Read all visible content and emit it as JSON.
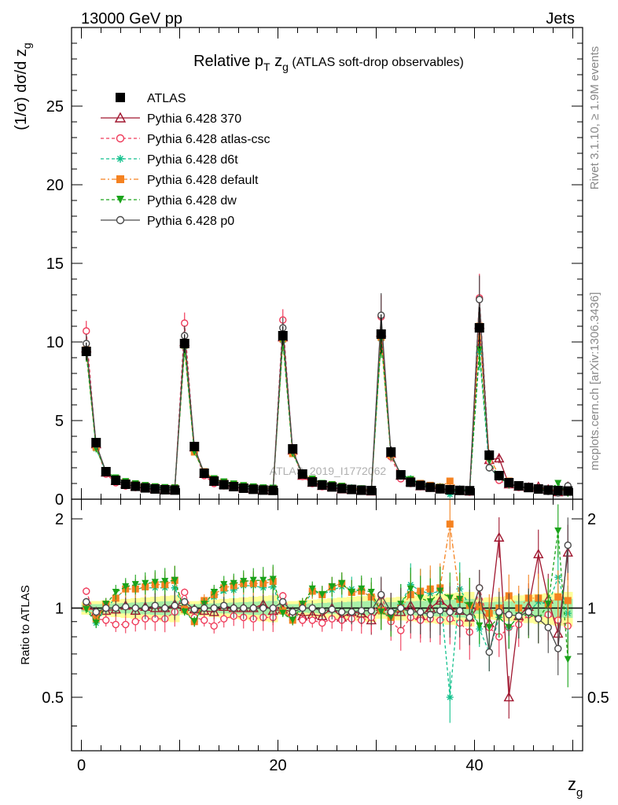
{
  "header": {
    "left": "13000 GeV pp",
    "right": "Jets"
  },
  "side_labels": {
    "rivet": "Rivet 3.1.10, ≥ 1.9M events",
    "mcplots": "mcplots.cern.ch [arXiv:1306.3436]"
  },
  "watermark": "ATLAS_2019_I1772062",
  "chart_data": [
    {
      "type": "line",
      "panel": "main",
      "title": "Relative p_T z_g (ATLAS soft-drop observables)",
      "title_main": "Relative p",
      "title_sub": "T",
      "title_mid": " z",
      "title_sub2": "g",
      "title_tail": " (ATLAS soft-drop observables)",
      "ylabel": "(1/σ) dσ/d z_g",
      "ylabel_main": "(1/σ) dσ/d z",
      "ylabel_sub": "g",
      "xlabel": "z",
      "xlabel_sub": "g",
      "xlim": [
        -1,
        51
      ],
      "ylim": [
        0,
        30
      ],
      "yticks": [
        0,
        5,
        10,
        15,
        20,
        25
      ],
      "xticks": [
        0,
        20,
        40
      ],
      "x": [
        0.5,
        1.5,
        2.5,
        3.5,
        4.5,
        5.5,
        6.5,
        7.5,
        8.5,
        9.5,
        10.5,
        11.5,
        12.5,
        13.5,
        14.5,
        15.5,
        16.5,
        17.5,
        18.5,
        19.5,
        20.5,
        21.5,
        22.5,
        23.5,
        24.5,
        25.5,
        26.5,
        27.5,
        28.5,
        29.5,
        30.5,
        31.5,
        32.5,
        33.5,
        34.5,
        35.5,
        36.5,
        37.5,
        38.5,
        39.5,
        40.5,
        41.5,
        42.5,
        43.5,
        44.5,
        45.5,
        46.5,
        47.5,
        48.5,
        49.5
      ],
      "series": [
        {
          "name": "ATLAS",
          "color": "#000000",
          "marker": "square-filled",
          "values": [
            9.4,
            3.6,
            1.75,
            1.2,
            0.95,
            0.82,
            0.72,
            0.65,
            0.6,
            0.58,
            9.9,
            3.35,
            1.65,
            1.15,
            0.92,
            0.8,
            0.7,
            0.63,
            0.58,
            0.56,
            10.4,
            3.2,
            1.6,
            1.1,
            0.9,
            0.78,
            0.68,
            0.62,
            0.57,
            0.55,
            10.5,
            3.0,
            1.55,
            1.08,
            0.88,
            0.76,
            0.66,
            0.6,
            0.56,
            0.54,
            10.9,
            2.8,
            1.5,
            1.05,
            0.85,
            0.74,
            0.65,
            0.58,
            0.55,
            0.52
          ]
        },
        {
          "name": "Pythia 6.428 370",
          "color": "#a0162f",
          "marker": "triangle-open",
          "values": [
            9.6,
            3.5,
            1.7,
            1.18,
            0.97,
            0.8,
            0.73,
            0.65,
            0.6,
            0.6,
            10.0,
            3.3,
            1.62,
            1.12,
            0.93,
            0.8,
            0.7,
            0.63,
            0.6,
            0.55,
            10.3,
            3.1,
            1.5,
            1.05,
            0.85,
            0.78,
            0.63,
            0.6,
            0.55,
            0.5,
            10.6,
            2.9,
            1.5,
            1.1,
            0.83,
            0.76,
            0.7,
            0.6,
            0.55,
            0.5,
            11.1,
            2.5,
            2.6,
            0.95,
            0.8,
            0.75,
            0.8,
            0.62,
            0.45,
            0.8
          ]
        },
        {
          "name": "Pythia 6.428 atlas-csc",
          "color": "#ef3b5a",
          "marker": "circle-open",
          "values": [
            10.7,
            3.3,
            1.6,
            1.05,
            0.84,
            0.74,
            0.66,
            0.6,
            0.55,
            0.56,
            11.2,
            3.1,
            1.5,
            1.0,
            0.85,
            0.75,
            0.65,
            0.58,
            0.54,
            0.52,
            11.4,
            3.0,
            1.45,
            1.0,
            0.8,
            0.72,
            0.62,
            0.57,
            0.52,
            0.51,
            11.6,
            2.7,
            1.3,
            1.0,
            0.8,
            0.7,
            0.6,
            0.55,
            0.5,
            0.45,
            12.8,
            2.4,
            1.2,
            0.9,
            0.75,
            0.7,
            0.6,
            0.55,
            0.5,
            0.45
          ]
        },
        {
          "name": "Pythia 6.428 d6t",
          "color": "#13c18d",
          "marker": "asterisk",
          "values": [
            9.5,
            3.2,
            1.75,
            1.3,
            1.1,
            0.95,
            0.84,
            0.76,
            0.7,
            0.68,
            9.7,
            3.0,
            1.7,
            1.25,
            1.05,
            0.92,
            0.83,
            0.75,
            0.68,
            0.66,
            10.1,
            2.9,
            1.6,
            1.25,
            1.0,
            0.9,
            0.8,
            0.72,
            0.65,
            0.6,
            10.2,
            2.8,
            1.6,
            1.3,
            1.0,
            0.85,
            0.75,
            0.3,
            0.65,
            0.55,
            9.3,
            2.0,
            1.4,
            0.9,
            0.8,
            0.72,
            0.68,
            0.6,
            0.7,
            0.5
          ]
        },
        {
          "name": "Pythia 6.428 default",
          "color": "#f58220",
          "marker": "square-filled",
          "values": [
            9.5,
            3.3,
            1.8,
            1.3,
            1.1,
            0.95,
            0.85,
            0.78,
            0.72,
            0.72,
            9.8,
            3.0,
            1.75,
            1.28,
            1.08,
            0.95,
            0.85,
            0.76,
            0.7,
            0.69,
            10.2,
            2.9,
            1.65,
            1.25,
            1.0,
            0.92,
            0.82,
            0.7,
            0.65,
            0.6,
            10.3,
            2.8,
            1.55,
            1.2,
            1.0,
            0.88,
            0.77,
            1.15,
            0.6,
            0.55,
            11.0,
            2.7,
            1.5,
            1.15,
            0.85,
            0.8,
            0.7,
            0.6,
            0.6,
            0.55
          ]
        },
        {
          "name": "Pythia 6.428 dw",
          "color": "#1aa31a",
          "marker": "triangle-down-filled",
          "values": [
            9.3,
            3.2,
            1.8,
            1.35,
            1.12,
            0.98,
            0.87,
            0.79,
            0.74,
            0.72,
            9.6,
            3.0,
            1.7,
            1.3,
            1.1,
            0.97,
            0.86,
            0.78,
            0.72,
            0.7,
            10.0,
            2.9,
            1.65,
            1.28,
            1.0,
            0.92,
            0.82,
            0.7,
            0.66,
            0.62,
            10.2,
            2.8,
            1.6,
            1.25,
            0.95,
            0.8,
            0.75,
            0.65,
            0.6,
            0.55,
            9.5,
            2.4,
            1.4,
            0.9,
            0.8,
            0.7,
            0.6,
            0.6,
            1.0,
            0.35
          ]
        },
        {
          "name": "Pythia 6.428 p0",
          "color": "#4a4a4a",
          "marker": "circle-open",
          "values": [
            9.9,
            3.5,
            1.75,
            1.2,
            0.96,
            0.82,
            0.72,
            0.66,
            0.6,
            0.59,
            10.4,
            3.3,
            1.65,
            1.15,
            0.94,
            0.8,
            0.7,
            0.63,
            0.58,
            0.56,
            10.9,
            3.1,
            1.6,
            1.1,
            0.88,
            0.77,
            0.66,
            0.6,
            0.56,
            0.54,
            11.7,
            2.9,
            1.55,
            1.05,
            0.85,
            0.72,
            0.65,
            0.58,
            0.55,
            0.5,
            12.7,
            2.0,
            1.45,
            1.0,
            0.8,
            0.72,
            0.6,
            0.5,
            0.4,
            0.85
          ]
        }
      ]
    },
    {
      "type": "line",
      "panel": "ratio",
      "ylabel": "Ratio to ATLAS",
      "ylim": [
        0.33,
        2.33
      ],
      "yticks": [
        0.5,
        1,
        2
      ],
      "xticks": [
        0,
        20,
        40
      ],
      "reference_line": 1,
      "series": [
        {
          "name": "Pythia 6.428 370",
          "color": "#a0162f",
          "marker": "triangle-open",
          "values": [
            1.02,
            0.97,
            0.98,
            0.99,
            1.02,
            0.98,
            1.01,
            1.0,
            1.0,
            1.03,
            1.01,
            0.99,
            0.98,
            0.97,
            1.01,
            1.0,
            1.0,
            1.0,
            1.03,
            0.98,
            0.99,
            0.97,
            0.94,
            0.95,
            0.94,
            1.0,
            0.93,
            0.97,
            0.96,
            0.91,
            1.01,
            0.97,
            0.97,
            1.02,
            0.94,
            1.0,
            1.06,
            1.0,
            0.98,
            0.93,
            1.02,
            0.89,
            1.73,
            0.5,
            0.94,
            1.01,
            1.52,
            1.07,
            0.82,
            1.54
          ]
        },
        {
          "name": "Pythia 6.428 atlas-csc",
          "color": "#ef3b5a",
          "marker": "circle-open",
          "values": [
            1.14,
            0.92,
            0.91,
            0.88,
            0.88,
            0.9,
            0.92,
            0.92,
            0.92,
            0.97,
            1.13,
            0.93,
            0.91,
            0.87,
            0.92,
            0.94,
            0.93,
            0.92,
            0.93,
            0.93,
            1.1,
            0.94,
            0.91,
            0.91,
            0.89,
            0.92,
            0.91,
            0.92,
            0.91,
            0.93,
            1.1,
            0.9,
            0.84,
            0.93,
            0.91,
            0.92,
            0.91,
            0.92,
            0.89,
            0.83,
            1.17,
            0.86,
            0.8,
            0.86,
            0.88,
            0.95,
            0.92,
            0.95,
            0.91,
            0.87
          ]
        },
        {
          "name": "Pythia 6.428 d6t",
          "color": "#13c18d",
          "marker": "asterisk",
          "values": [
            1.01,
            0.89,
            1.0,
            1.08,
            1.16,
            1.16,
            1.17,
            1.17,
            1.17,
            1.17,
            0.98,
            0.9,
            1.03,
            1.09,
            1.14,
            1.15,
            1.19,
            1.19,
            1.17,
            1.18,
            0.97,
            0.91,
            1.0,
            1.14,
            1.11,
            1.15,
            1.18,
            1.16,
            1.14,
            1.09,
            0.97,
            0.93,
            1.03,
            1.2,
            1.14,
            1.12,
            1.14,
            0.5,
            1.16,
            1.02,
            0.85,
            0.71,
            0.93,
            0.86,
            0.94,
            0.97,
            1.05,
            1.03,
            1.27,
            0.96
          ]
        },
        {
          "name": "Pythia 6.428 default",
          "color": "#f58220",
          "marker": "square-filled",
          "values": [
            1.01,
            0.92,
            1.03,
            1.08,
            1.16,
            1.16,
            1.18,
            1.2,
            1.2,
            1.24,
            0.99,
            0.9,
            1.06,
            1.11,
            1.17,
            1.19,
            1.21,
            1.21,
            1.21,
            1.23,
            0.98,
            0.91,
            1.03,
            1.14,
            1.11,
            1.18,
            1.21,
            1.13,
            1.14,
            1.09,
            0.98,
            0.93,
            1.0,
            1.11,
            1.14,
            1.16,
            1.17,
            1.92,
            1.07,
            1.02,
            1.01,
            0.96,
            1.0,
            1.1,
            1.0,
            1.08,
            1.08,
            1.03,
            1.09,
            1.06
          ]
        },
        {
          "name": "Pythia 6.428 dw",
          "color": "#1aa31a",
          "marker": "triangle-down-filled",
          "values": [
            0.99,
            0.89,
            1.03,
            1.13,
            1.18,
            1.2,
            1.21,
            1.22,
            1.23,
            1.24,
            0.97,
            0.9,
            1.03,
            1.13,
            1.2,
            1.21,
            1.23,
            1.24,
            1.24,
            1.25,
            0.96,
            0.91,
            1.03,
            1.16,
            1.11,
            1.18,
            1.21,
            1.13,
            1.16,
            1.13,
            0.97,
            0.93,
            1.03,
            1.16,
            1.08,
            1.05,
            1.14,
            1.08,
            1.07,
            1.02,
            0.87,
            0.86,
            0.93,
            0.86,
            0.94,
            0.95,
            0.92,
            1.03,
            1.82,
            0.67
          ]
        },
        {
          "name": "Pythia 6.428 p0",
          "color": "#4a4a4a",
          "marker": "circle-open",
          "values": [
            1.05,
            0.97,
            1.0,
            1.0,
            1.01,
            1.0,
            1.0,
            1.02,
            1.0,
            1.02,
            1.05,
            0.99,
            1.0,
            1.0,
            1.02,
            1.0,
            1.0,
            1.0,
            1.0,
            1.0,
            1.05,
            0.97,
            1.0,
            1.0,
            0.98,
            0.99,
            0.97,
            0.97,
            0.98,
            0.98,
            1.11,
            0.97,
            1.0,
            0.97,
            0.97,
            0.95,
            0.98,
            0.97,
            0.98,
            0.93,
            1.17,
            0.71,
            0.97,
            0.95,
            0.94,
            0.97,
            0.92,
            0.86,
            0.73,
            1.63
          ]
        }
      ]
    }
  ],
  "band_colors": {
    "stat": "#a8f0a8",
    "total": "#ffff9a"
  }
}
